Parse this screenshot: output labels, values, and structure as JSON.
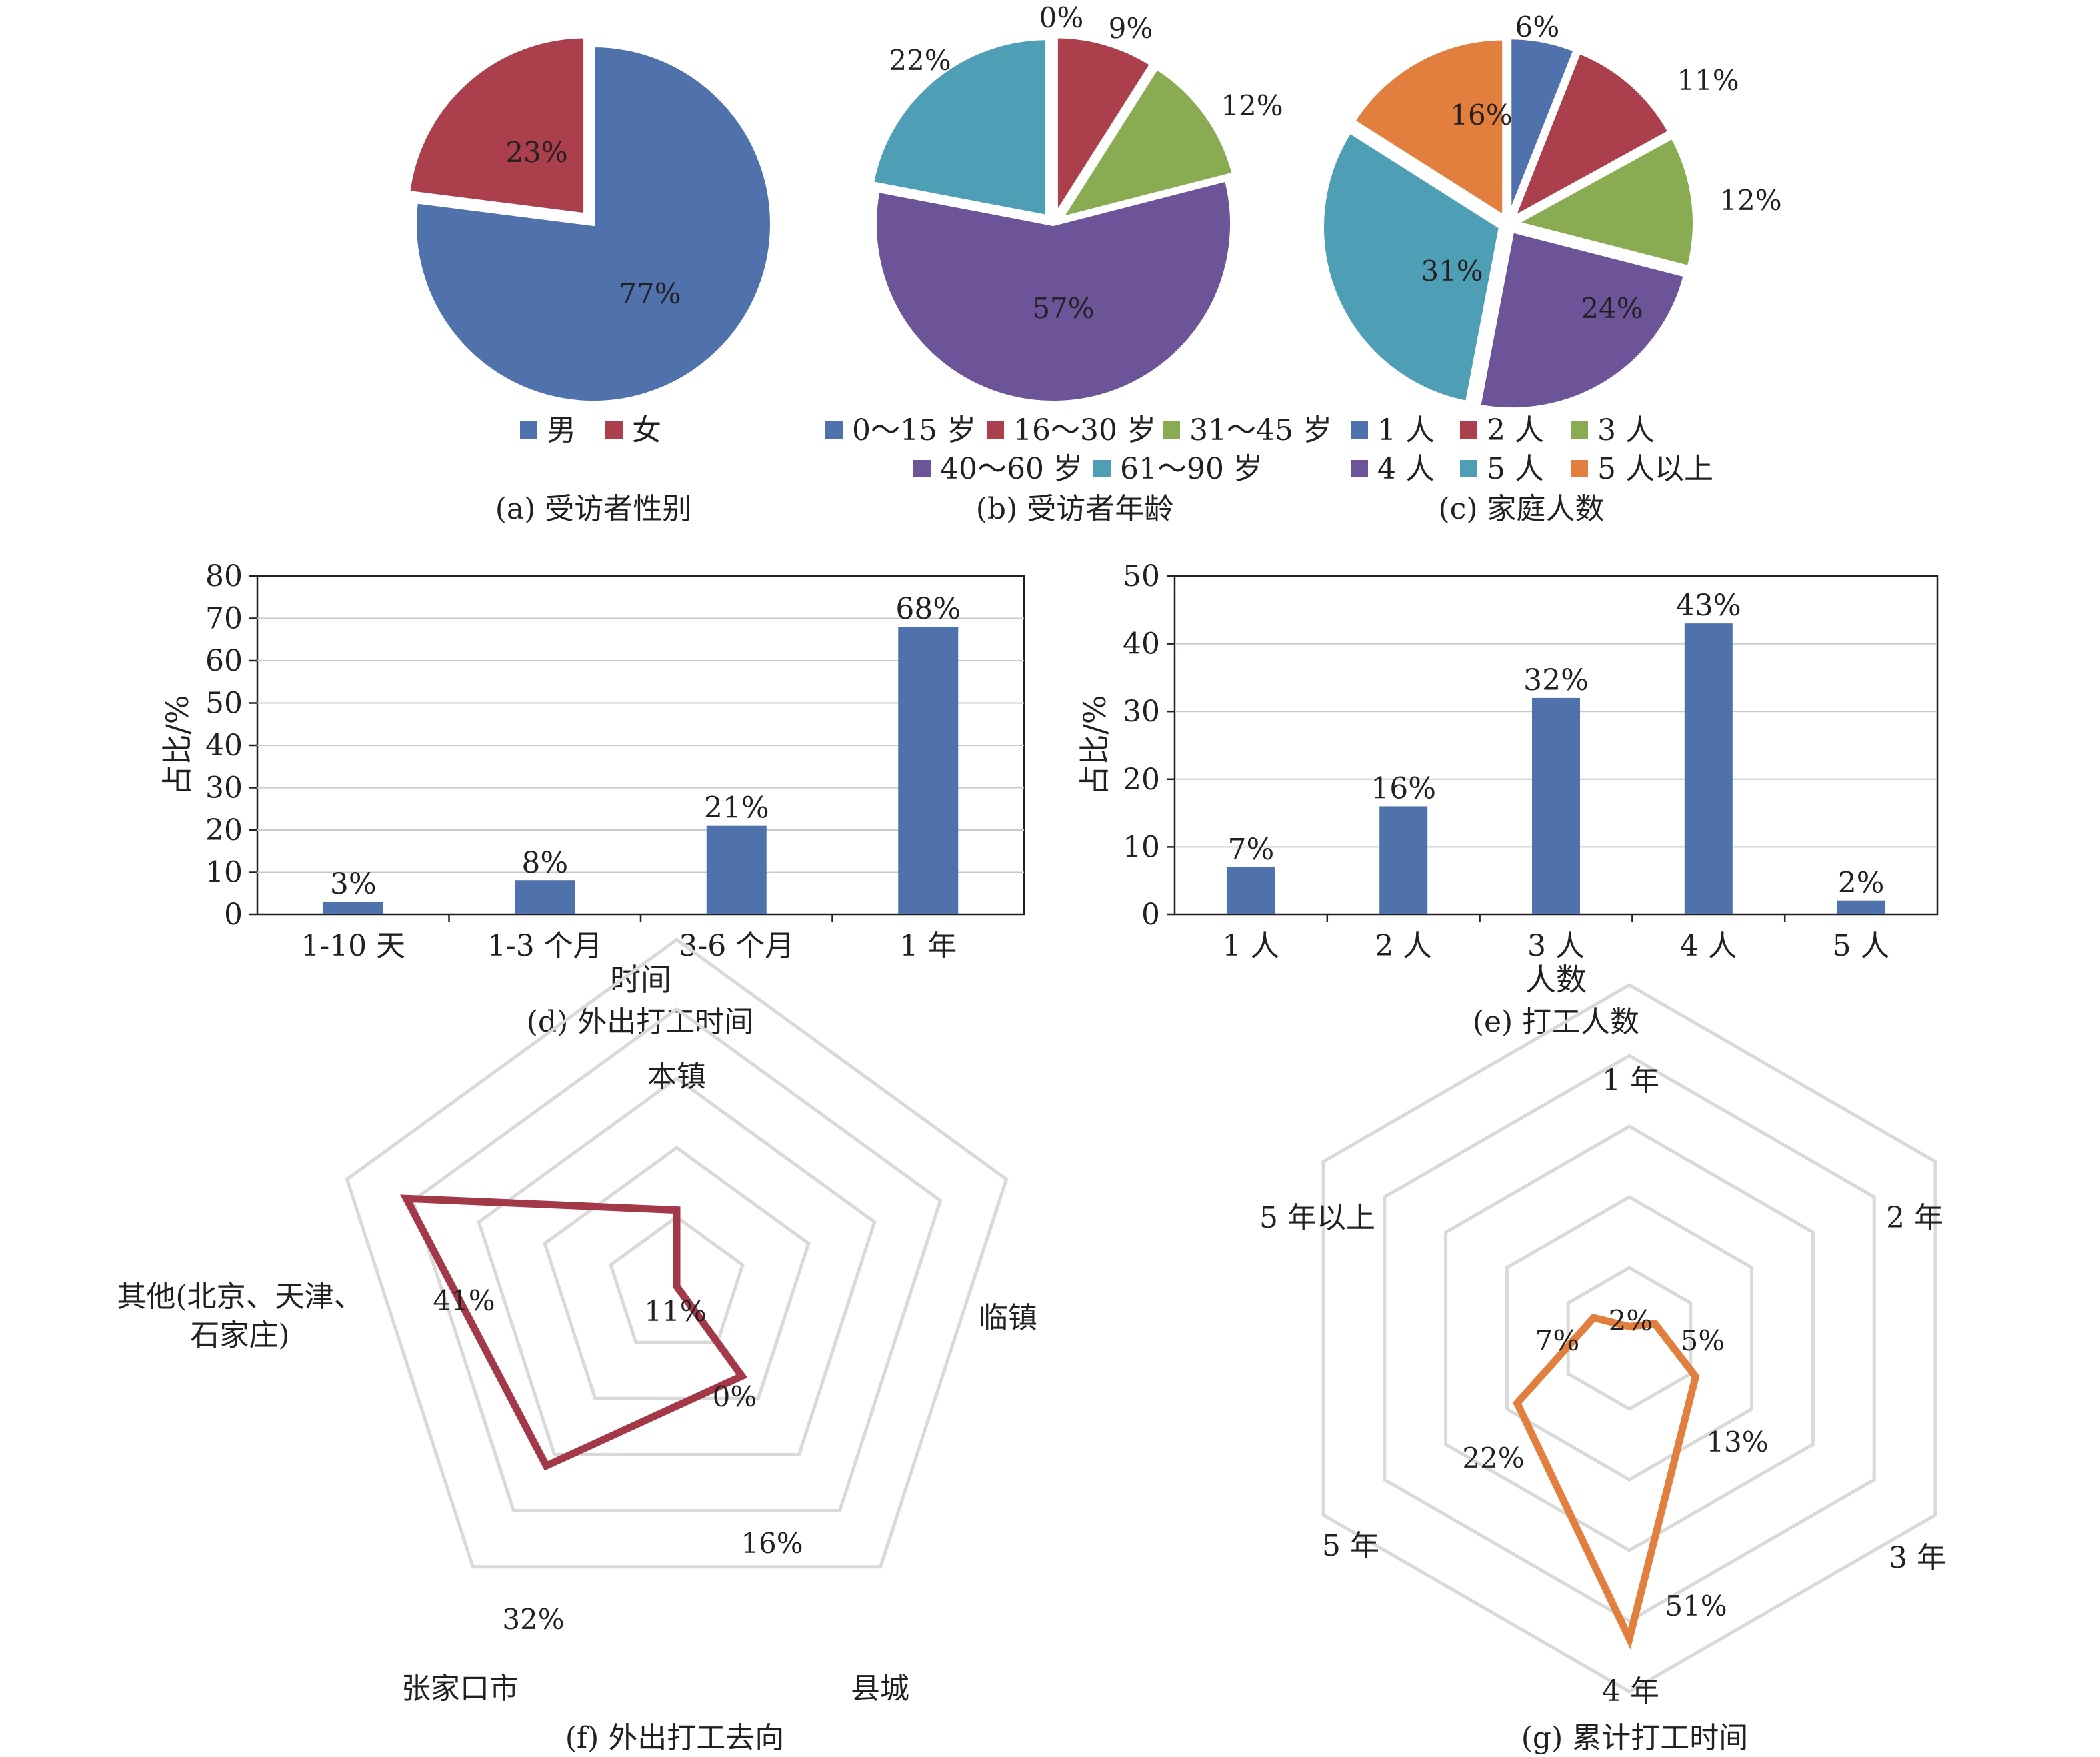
{
  "chart_data": [
    {
      "id": "a",
      "type": "pie",
      "caption": "(a) 受访者性别",
      "slices": [
        {
          "label": "男",
          "value": 77,
          "text": "77%",
          "color": "#4f72ad"
        },
        {
          "label": "女",
          "value": 23,
          "text": "23%",
          "color": "#ab3f4b"
        }
      ],
      "legend": [
        "男",
        "女"
      ]
    },
    {
      "id": "b",
      "type": "pie",
      "caption": "(b) 受访者年龄",
      "slices": [
        {
          "label": "0～15 岁",
          "value": 0,
          "text": "0%",
          "color": "#4f72ad"
        },
        {
          "label": "16～30 岁",
          "value": 9,
          "text": "9%",
          "color": "#ab3f4b"
        },
        {
          "label": "31～45 岁",
          "value": 12,
          "text": "12%",
          "color": "#89ac52"
        },
        {
          "label": "40～60 岁",
          "value": 57,
          "text": "57%",
          "color": "#6d5499"
        },
        {
          "label": "61～90 岁",
          "value": 22,
          "text": "22%",
          "color": "#4e9fb5"
        }
      ],
      "legend": [
        "0～15 岁",
        "16～30 岁",
        "31～45 岁",
        "40～60 岁",
        "61～90 岁"
      ]
    },
    {
      "id": "c",
      "type": "pie",
      "caption": "(c) 家庭人数",
      "slices": [
        {
          "label": "1 人",
          "value": 6,
          "text": "6%",
          "color": "#4f72ad"
        },
        {
          "label": "2 人",
          "value": 11,
          "text": "11%",
          "color": "#ab3f4b"
        },
        {
          "label": "3 人",
          "value": 12,
          "text": "12%",
          "color": "#89ac52"
        },
        {
          "label": "4 人",
          "value": 24,
          "text": "24%",
          "color": "#6d5499"
        },
        {
          "label": "5 人",
          "value": 31,
          "text": "31%",
          "color": "#4e9fb5"
        },
        {
          "label": "5 人以上",
          "value": 16,
          "text": "16%",
          "color": "#e27f3f"
        }
      ],
      "legend": [
        "1 人",
        "2 人",
        "3 人",
        "4 人",
        "5 人",
        "5 人以上"
      ]
    },
    {
      "id": "d",
      "type": "bar",
      "caption": "(d) 外出打工时间",
      "categories": [
        "1-10 天",
        "1-3 个月",
        "3-6 个月",
        "1 年"
      ],
      "values": [
        3,
        8,
        21,
        68
      ],
      "data_labels": [
        "3%",
        "8%",
        "21%",
        "68%"
      ],
      "xlabel": "时间",
      "ylabel": "占比/%",
      "ylim": [
        0,
        80
      ],
      "yticks": [
        0,
        10,
        20,
        30,
        40,
        50,
        60,
        70,
        80
      ],
      "color": "#4f72ad",
      "grid": true
    },
    {
      "id": "e",
      "type": "bar",
      "caption": "(e) 打工人数",
      "categories": [
        "1 人",
        "2 人",
        "3 人",
        "4 人",
        "5 人"
      ],
      "values": [
        7,
        16,
        32,
        43,
        2
      ],
      "data_labels": [
        "7%",
        "16%",
        "32%",
        "43%",
        "2%"
      ],
      "xlabel": "人数",
      "ylabel": "占比/%",
      "ylim": [
        0,
        50
      ],
      "yticks": [
        0,
        10,
        20,
        30,
        40,
        50
      ],
      "color": "#4f72ad",
      "grid": true
    },
    {
      "id": "f",
      "type": "radar",
      "caption": "(f) 外出打工去向",
      "axes": [
        "本镇",
        "临镇",
        "县城",
        "张家口市",
        "其他(北京、天津、石家庄)"
      ],
      "axis_label_lines": [
        [
          "本镇"
        ],
        [
          "临镇"
        ],
        [
          "县城"
        ],
        [
          "张家口市"
        ],
        [
          "其他(北京、天津、",
          "石家庄)"
        ]
      ],
      "values": [
        11,
        0,
        16,
        32,
        41
      ],
      "data_labels": [
        "11%",
        "0%",
        "16%",
        "32%",
        "41%"
      ],
      "max": 50,
      "rings": 5,
      "color": "#a33848"
    },
    {
      "id": "g",
      "type": "radar",
      "caption": "(g) 累计打工时间",
      "axes": [
        "1 年",
        "2 年",
        "3 年",
        "4 年",
        "5 年",
        "5 年以上"
      ],
      "values": [
        2,
        5,
        13,
        51,
        22,
        7
      ],
      "data_labels": [
        "2%",
        "5%",
        "13%",
        "51%",
        "22%",
        "7%"
      ],
      "max": 60,
      "rings": 5,
      "color": "#e27f3f"
    }
  ]
}
